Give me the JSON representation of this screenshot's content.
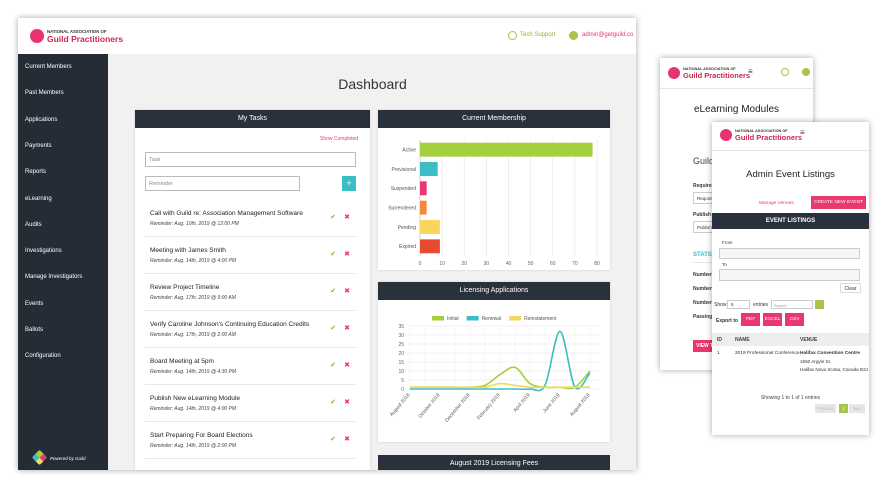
{
  "header": {
    "logo_small": "NATIONAL ASSOCIATION OF",
    "logo_name": "Guild Practitioners",
    "support": "Tech Support",
    "user": "admin@getguild.co"
  },
  "sidebar": {
    "items": [
      "Current Members",
      "Past Members",
      "Applications",
      "Payments",
      "Reports",
      "eLearning",
      "Audits",
      "Investigations",
      "Manage Investigators",
      "Events",
      "Ballots",
      "Configuration"
    ],
    "footer": "Powered by Guild"
  },
  "dashboard": {
    "title": "Dashboard",
    "tasks": {
      "title": "My Tasks",
      "show_completed": "Show Completed",
      "task_placeholder": "Task",
      "reminder_placeholder": "Reminder",
      "add": "+",
      "items": [
        {
          "title": "Call with Guild re: Association Management Software",
          "reminder": "Reminder: Aug. 10th, 2019 @ 12:00 PM"
        },
        {
          "title": "Meeting with James Smith",
          "reminder": "Reminder: Aug. 14th, 2019 @ 4:00 PM"
        },
        {
          "title": "Review Project Timeline",
          "reminder": "Reminder: Aug. 17th, 2019 @ 9:00 AM"
        },
        {
          "title": "Verify Caroline Johnson's Continuing Education Credits",
          "reminder": "Reminder: Aug. 17th, 2019 @ 2:00 AM"
        },
        {
          "title": "Board Meeting at 5pm",
          "reminder": "Reminder: Aug. 14th, 2019 @ 4:30 PM"
        },
        {
          "title": "Publish New eLearning Module",
          "reminder": "Reminder: Aug. 14th, 2019 @ 4:00 PM"
        },
        {
          "title": "Start Preparing For Board Elections",
          "reminder": "Reminder: Aug. 14th, 2019 @ 2:00 PM"
        }
      ]
    },
    "fees_title": "August 2019 Licensing Fees"
  },
  "chart_data": [
    {
      "type": "bar",
      "orientation": "horizontal",
      "title": "Current Membership",
      "categories": [
        "Active",
        "Provisional",
        "Suspended",
        "Surrendered",
        "Pending",
        "Expired"
      ],
      "values": [
        78,
        8,
        3,
        3,
        9,
        9
      ],
      "colors": [
        "#a5cf3d",
        "#3bbdc6",
        "#e8386d",
        "#f5893b",
        "#f9d65b",
        "#e84a2f"
      ],
      "xlim": [
        0,
        80
      ],
      "xticks": [
        0,
        10,
        20,
        30,
        40,
        50,
        60,
        70,
        80
      ],
      "grid": true
    },
    {
      "type": "line",
      "title": "Licensing Applications",
      "categories": [
        "August 2018",
        null,
        "October 2018",
        null,
        "December 2018",
        null,
        "February 2019",
        null,
        "April 2019",
        null,
        "June 2019",
        null,
        "August 2019"
      ],
      "series": [
        {
          "name": "Initial",
          "color": "#a5cf3d",
          "values": [
            1,
            1,
            1,
            1,
            1,
            2,
            8,
            12,
            3,
            1,
            1,
            1,
            10
          ]
        },
        {
          "name": "Renewal",
          "color": "#3bbdc6",
          "values": [
            0,
            0,
            0,
            0,
            0,
            0,
            0,
            0,
            0,
            2,
            32,
            1,
            9
          ]
        },
        {
          "name": "Reinstatement",
          "color": "#f9d65b",
          "values": [
            1,
            1,
            1,
            1,
            1,
            1,
            3,
            2,
            1,
            1,
            1,
            1,
            1
          ]
        }
      ],
      "ylim": [
        0,
        35
      ],
      "yticks": [
        0,
        5,
        10,
        15,
        20,
        25,
        30,
        35
      ],
      "grid": true,
      "legend": "top"
    }
  ],
  "elearning_window": {
    "logo_small": "NATIONAL ASSOCIATION OF",
    "logo_name": "Guild Practitioners",
    "menu": "≡",
    "title": "eLearning Modules",
    "section": "Guild",
    "field1": "Requiren",
    "input1": "Require",
    "field2": "Publish S",
    "input2": "Publish",
    "stats": "STATS",
    "rows": [
      "Number",
      "Number",
      "Number",
      "Passing F"
    ],
    "button": "VIEW T"
  },
  "events_window": {
    "logo_small": "NATIONAL ASSOCIATION OF",
    "logo_name": "Guild Practitioners",
    "menu": "≡",
    "title": "Admin Event Listings",
    "manage": "Manage Venues",
    "create": "CREATE NEW EVENT",
    "bar": "EVENT LISTINGS",
    "from": "From",
    "to": "To",
    "clear": "Clear",
    "show": "Show",
    "show_count": "5",
    "entries": "entries",
    "search": "Search",
    "export": "Export to",
    "exports": [
      "PDF",
      "EXCEL",
      "CSV"
    ],
    "headers": [
      "ID",
      "NAME",
      "VENUE"
    ],
    "rows": [
      {
        "id": "1",
        "name": "2019 Professional Conference",
        "venue": "Halifax Convention Centre",
        "address": [
          "1650 Argyle St.",
          "Halifax Nova Scotia, Canada B3J"
        ]
      }
    ],
    "info": "Showing 1 to 1 of 1 entries",
    "pages": [
      "Previous",
      "1",
      "Next"
    ]
  }
}
